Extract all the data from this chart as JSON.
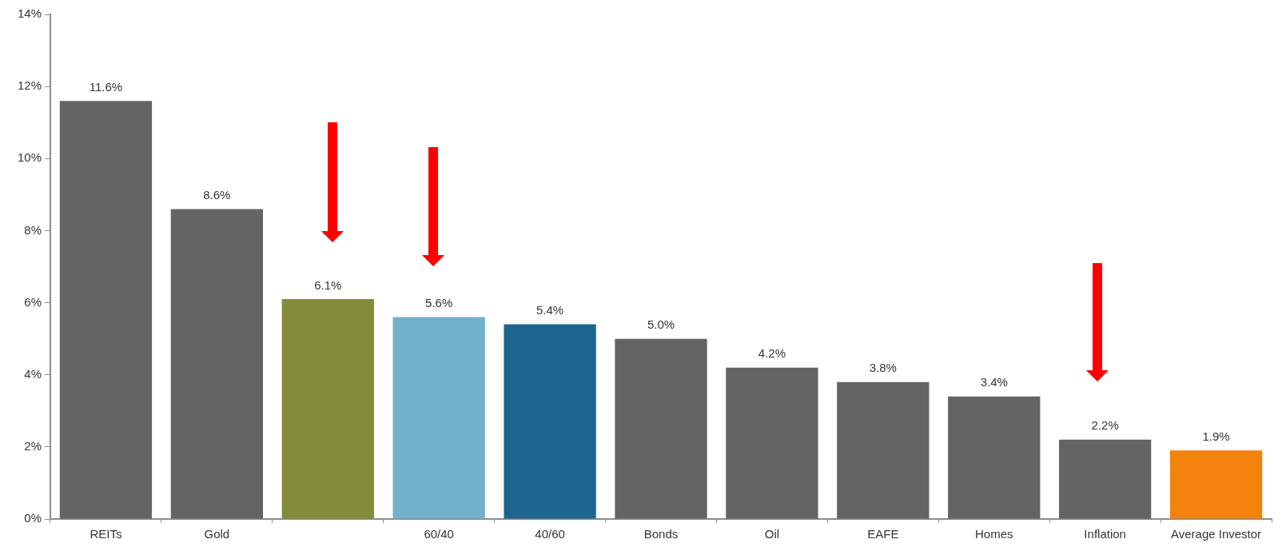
{
  "chart_data": {
    "type": "bar",
    "categories": [
      "REITs",
      "Gold",
      null,
      "60/40",
      "40/60",
      "Bonds",
      "Oil",
      "EAFE",
      "Homes",
      "Inflation",
      "Average Investor"
    ],
    "values": [
      11.6,
      8.6,
      6.1,
      5.6,
      5.4,
      5.0,
      4.2,
      3.8,
      3.4,
      2.2,
      1.9
    ],
    "colors": [
      "#646464",
      "#646464",
      "#838a3a",
      "#72b1cb",
      "#1c668f",
      "#646464",
      "#646464",
      "#646464",
      "#646464",
      "#646464",
      "#f5820c"
    ],
    "value_labels": [
      "11.6%",
      "8.6%",
      "6.1%",
      "5.6%",
      "5.4%",
      "5.0%",
      "4.2%",
      "3.8%",
      "3.4%",
      "2.2%",
      "1.9%"
    ],
    "ylim": [
      0,
      14
    ],
    "yticks": [
      {
        "value": 0,
        "label": "0%"
      },
      {
        "value": 2,
        "label": "2%"
      },
      {
        "value": 4,
        "label": "4%"
      },
      {
        "value": 6,
        "label": "6%"
      },
      {
        "value": 8,
        "label": "8%"
      },
      {
        "value": 10,
        "label": "10%"
      },
      {
        "value": 12,
        "label": "12%"
      },
      {
        "value": 14,
        "label": "14%"
      }
    ]
  }
}
